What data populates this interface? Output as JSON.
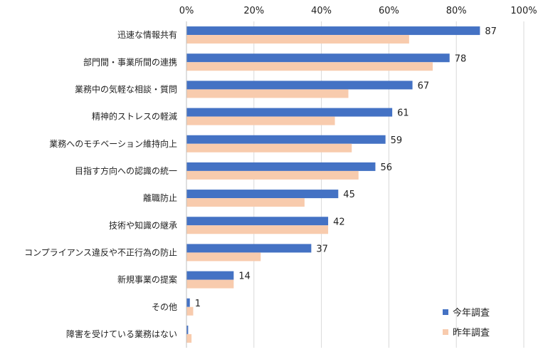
{
  "chart_data": {
    "type": "bar",
    "orientation": "horizontal",
    "categories": [
      "迅速な情報共有",
      "部門間・事業所間の連携",
      "業務中の気軽な相談・質問",
      "精神的ストレスの軽減",
      "業務へのモチベーション維持向上",
      "目指す方向への認識の統一",
      "離職防止",
      "技術や知識の継承",
      "コンプライアンス違反や不正行為の防止",
      "新規事業の提案",
      "その他",
      "障害を受けている業務はない"
    ],
    "series": [
      {
        "name": "今年調査",
        "color": "#4472C4",
        "values": [
          87,
          78,
          67,
          61,
          59,
          56,
          45,
          42,
          37,
          14,
          1,
          0.5
        ],
        "data_labels": [
          "87",
          "78",
          "67",
          "61",
          "59",
          "56",
          "45",
          "42",
          "37",
          "14",
          "1",
          ""
        ]
      },
      {
        "name": "昨年調査",
        "color": "#F8CBAD",
        "values": [
          66,
          73,
          48,
          44,
          49,
          51,
          35,
          42,
          22,
          14,
          2,
          1.5
        ],
        "data_labels": [
          "",
          "",
          "",
          "",
          "",
          "",
          "",
          "",
          "",
          "",
          "",
          ""
        ]
      }
    ],
    "xlim": [
      0,
      100
    ],
    "xticks": [
      "0%",
      "20%",
      "40%",
      "60%",
      "80%",
      "100%"
    ],
    "xtick_values": [
      0,
      20,
      40,
      60,
      80,
      100
    ],
    "grid": true,
    "legend_position": "bottom-right",
    "title": "",
    "xlabel": "",
    "ylabel": ""
  }
}
